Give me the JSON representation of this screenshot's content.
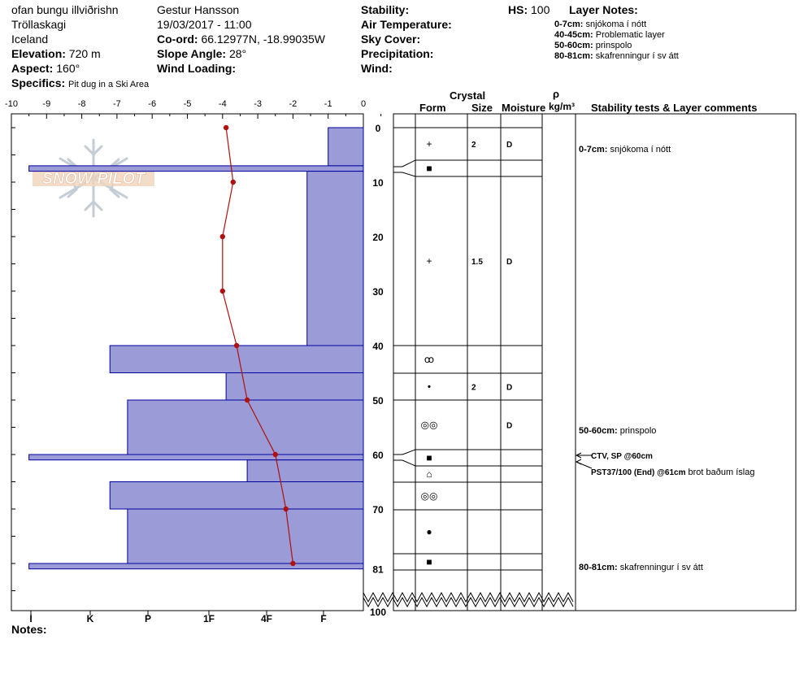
{
  "header": {
    "location": "ofan bungu illviðrishn",
    "region": "Tröllaskagi",
    "country": "Iceland",
    "elevation_label": "Elevation:",
    "elevation": "720 m",
    "aspect_label": "Aspect:",
    "aspect": "160°",
    "specifics_label": "Specifics:",
    "specifics": "Pit dug in a Ski Area",
    "observer": "Gestur Hansson",
    "datetime": "19/03/2017 - 11:00",
    "coord_label": "Co-ord:",
    "coord": "66.12977N, -18.99035W",
    "slope_label": "Slope Angle:",
    "slope": "28°",
    "wind_loading_label": "Wind Loading:",
    "stability_label": "Stability:",
    "air_temp_label": "Air Temperature:",
    "sky_label": "Sky Cover:",
    "precip_label": "Precipitation:",
    "wind_label": "Wind:",
    "hs_label": "HS:",
    "hs": "100",
    "layer_notes_title": "Layer Notes:",
    "layer_notes": [
      {
        "range": "0-7cm:",
        "text": "snjókoma í nótt"
      },
      {
        "range": "40-45cm:",
        "text": "Problematic layer"
      },
      {
        "range": "50-60cm:",
        "text": "prinspolo"
      },
      {
        "range": "80-81cm:",
        "text": "skafrenningur í sv átt"
      }
    ]
  },
  "watermark": "SNOW PILOT",
  "notes_label": "Notes:",
  "columns": {
    "crystal": "Crystal",
    "form": "Form",
    "size": "Size",
    "moisture": "Moisture",
    "rho": "ρ",
    "density_unit": "kg/m³",
    "stability": "Stability tests & Layer comments"
  },
  "chart_data": {
    "type": "bar",
    "x_temperature_ticks": [
      "-10",
      "-9",
      "-8",
      "-7",
      "-6",
      "-5",
      "-4",
      "-3",
      "-2",
      "-1",
      "0"
    ],
    "x_hardness_ticks": [
      "I",
      "K",
      "P",
      "1F",
      "4F",
      "F"
    ],
    "depth_ticks": [
      "0",
      "10",
      "20",
      "30",
      "40",
      "50",
      "60",
      "70",
      "81",
      "100"
    ],
    "depth_ticks_values": [
      0,
      10,
      20,
      30,
      40,
      50,
      60,
      70,
      81,
      100
    ],
    "hardness_layers": [
      {
        "top": 0,
        "bottom": 7,
        "hardness": 1.0
      },
      {
        "top": 7,
        "bottom": 8,
        "hardness": 9.5
      },
      {
        "top": 8,
        "bottom": 40,
        "hardness": 1.6
      },
      {
        "top": 40,
        "bottom": 45,
        "hardness": 7.2
      },
      {
        "top": 45,
        "bottom": 50,
        "hardness": 3.9
      },
      {
        "top": 50,
        "bottom": 60,
        "hardness": 6.7
      },
      {
        "top": 60,
        "bottom": 61,
        "hardness": 9.5
      },
      {
        "top": 61,
        "bottom": 65,
        "hardness": 3.3
      },
      {
        "top": 65,
        "bottom": 70,
        "hardness": 7.2
      },
      {
        "top": 70,
        "bottom": 80,
        "hardness": 6.7
      },
      {
        "top": 80,
        "bottom": 81,
        "hardness": 9.5
      }
    ],
    "temperature_profile": [
      {
        "depth": 0,
        "temp": -3.9
      },
      {
        "depth": 10,
        "temp": -3.7
      },
      {
        "depth": 20,
        "temp": -4.0
      },
      {
        "depth": 30,
        "temp": -4.0
      },
      {
        "depth": 40,
        "temp": -3.6
      },
      {
        "depth": 50,
        "temp": -3.3
      },
      {
        "depth": 60,
        "temp": -2.5
      },
      {
        "depth": 70,
        "temp": -2.2
      },
      {
        "depth": 80,
        "temp": -2.0
      }
    ],
    "layer_boundaries": [
      0,
      7,
      8,
      40,
      45,
      50,
      60,
      61,
      65,
      70,
      80,
      81
    ],
    "layer_rows": [
      {
        "top": 0,
        "bottom": 7,
        "form_symbol": "+",
        "size": "2",
        "moisture": "D"
      },
      {
        "top": 7,
        "bottom": 8,
        "form_symbol": "■",
        "size": "",
        "moisture": ""
      },
      {
        "top": 8,
        "bottom": 40,
        "form_symbol": "+",
        "size": "1.5",
        "moisture": "D"
      },
      {
        "top": 40,
        "bottom": 45,
        "form_symbol": "ꝏ",
        "size": "",
        "moisture": ""
      },
      {
        "top": 45,
        "bottom": 50,
        "form_symbol": "•",
        "size": "2",
        "moisture": "D"
      },
      {
        "top": 50,
        "bottom": 60,
        "form_symbol": "◎◎",
        "size": "",
        "moisture": "D"
      },
      {
        "top": 60,
        "bottom": 61,
        "form_symbol": "■",
        "size": "",
        "moisture": ""
      },
      {
        "top": 61,
        "bottom": 65,
        "form_symbol": "⌂",
        "size": "",
        "moisture": ""
      },
      {
        "top": 65,
        "bottom": 70,
        "form_symbol": "◎◎",
        "size": "",
        "moisture": ""
      },
      {
        "top": 70,
        "bottom": 80,
        "form_symbol": "●",
        "size": "",
        "moisture": ""
      },
      {
        "top": 80,
        "bottom": 81,
        "form_symbol": "■",
        "size": "",
        "moisture": ""
      }
    ],
    "comments": [
      {
        "depth": 3,
        "range": "0-7cm:",
        "text": "snjókoma í nótt"
      },
      {
        "depth": 55,
        "range": "50-60cm:",
        "text": "prinspolo"
      },
      {
        "depth": 80,
        "range": "80-81cm:",
        "text": "skafrenningur í sv átt"
      }
    ],
    "stability_tests": [
      {
        "depth": 60,
        "bold": "CTV, SP @60cm",
        "text": ""
      },
      {
        "depth": 61,
        "bold": "PST37/100 (End) @61cm",
        "text": "brot baðum íslag"
      }
    ],
    "colors": {
      "bar_fill": "#9b9bd7",
      "bar_stroke": "#0000a0",
      "temp_line": "#b01010"
    }
  }
}
